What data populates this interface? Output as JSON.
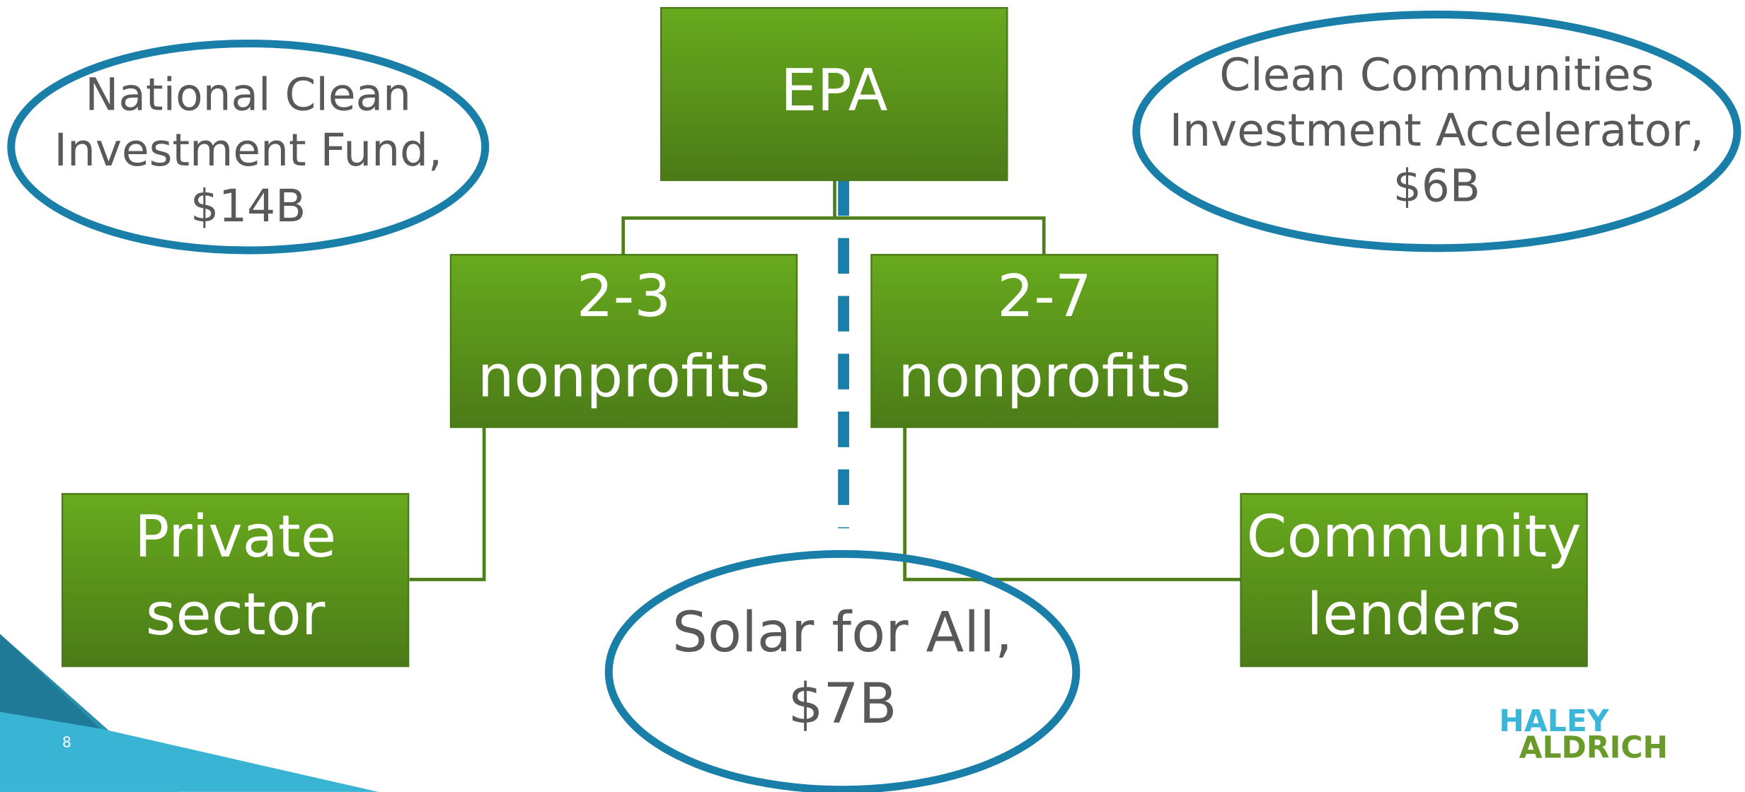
{
  "nodes": [
    {
      "lines": [
        "EPA"
      ]
    },
    {
      "lines": [
        "2-3",
        "nonprofits"
      ]
    },
    {
      "lines": [
        "2-7",
        "nonprofits"
      ]
    },
    {
      "lines": [
        "Private",
        "sector"
      ]
    },
    {
      "lines": [
        "Community",
        "lenders"
      ]
    }
  ],
  "programs": [
    {
      "lines": [
        "National Clean",
        "Investment Fund,",
        "$14B"
      ]
    },
    {
      "lines": [
        "Clean Communities",
        "Investment Accelerator,",
        "$6B"
      ]
    },
    {
      "lines": [
        "Solar for All,",
        "$7B"
      ]
    }
  ],
  "page_number": "8",
  "logo": {
    "line1": "HALEY",
    "line2": "ALDRICH"
  }
}
